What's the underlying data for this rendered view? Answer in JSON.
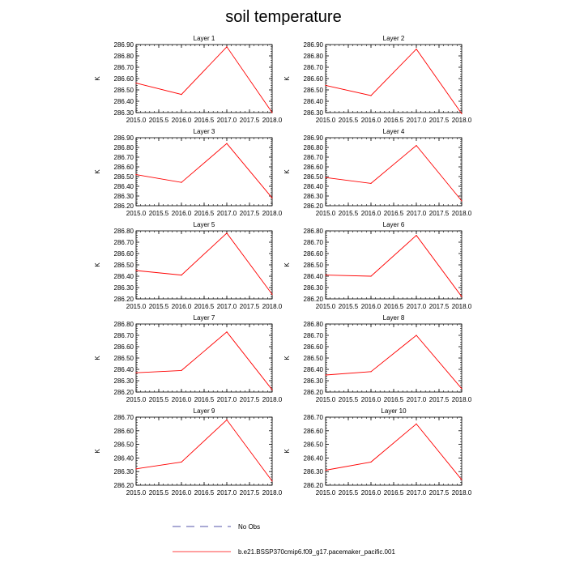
{
  "title": "soil temperature",
  "chart_data": [
    {
      "type": "line",
      "title": "Layer 1",
      "ylabel": "K",
      "xlim": [
        2015.0,
        2018.0
      ],
      "ylim": [
        286.3,
        286.9
      ],
      "yticks": [
        "286.30",
        "286.40",
        "286.50",
        "286.60",
        "286.70",
        "286.80",
        "286.90"
      ],
      "xticks": [
        "2015.0",
        "2015.5",
        "2016.0",
        "2016.5",
        "2017.0",
        "2017.5",
        "2018.0"
      ],
      "series": [
        {
          "name": "b.e21.BSSP370cmip6.f09_g17.pacemaker_pacific.001",
          "x": [
            2015,
            2016,
            2017,
            2018
          ],
          "y": [
            286.56,
            286.46,
            286.88,
            286.3
          ]
        }
      ]
    },
    {
      "type": "line",
      "title": "Layer 2",
      "ylabel": "K",
      "xlim": [
        2015.0,
        2018.0
      ],
      "ylim": [
        286.3,
        286.9
      ],
      "yticks": [
        "286.30",
        "286.40",
        "286.50",
        "286.60",
        "286.70",
        "286.80",
        "286.90"
      ],
      "xticks": [
        "2015.0",
        "2015.5",
        "2016.0",
        "2016.5",
        "2017.0",
        "2017.5",
        "2018.0"
      ],
      "series": [
        {
          "name": "b.e21.BSSP370cmip6.f09_g17.pacemaker_pacific.001",
          "x": [
            2015,
            2016,
            2017,
            2018
          ],
          "y": [
            286.54,
            286.45,
            286.86,
            286.29
          ]
        }
      ]
    },
    {
      "type": "line",
      "title": "Layer 3",
      "ylabel": "K",
      "xlim": [
        2015.0,
        2018.0
      ],
      "ylim": [
        286.2,
        286.9
      ],
      "yticks": [
        "286.20",
        "286.30",
        "286.40",
        "286.50",
        "286.60",
        "286.70",
        "286.80",
        "286.90"
      ],
      "xticks": [
        "2015.0",
        "2015.5",
        "2016.0",
        "2016.5",
        "2017.0",
        "2017.5",
        "2018.0"
      ],
      "series": [
        {
          "name": "b.e21.BSSP370cmip6.f09_g17.pacemaker_pacific.001",
          "x": [
            2015,
            2016,
            2017,
            2018
          ],
          "y": [
            286.52,
            286.44,
            286.84,
            286.28
          ]
        }
      ]
    },
    {
      "type": "line",
      "title": "Layer 4",
      "ylabel": "K",
      "xlim": [
        2015.0,
        2018.0
      ],
      "ylim": [
        286.2,
        286.9
      ],
      "yticks": [
        "286.20",
        "286.30",
        "286.40",
        "286.50",
        "286.60",
        "286.70",
        "286.80",
        "286.90"
      ],
      "xticks": [
        "2015.0",
        "2015.5",
        "2016.0",
        "2016.5",
        "2017.0",
        "2017.5",
        "2018.0"
      ],
      "series": [
        {
          "name": "b.e21.BSSP370cmip6.f09_g17.pacemaker_pacific.001",
          "x": [
            2015,
            2016,
            2017,
            2018
          ],
          "y": [
            286.49,
            286.43,
            286.82,
            286.25
          ]
        }
      ]
    },
    {
      "type": "line",
      "title": "Layer 5",
      "ylabel": "K",
      "xlim": [
        2015.0,
        2018.0
      ],
      "ylim": [
        286.2,
        286.8
      ],
      "yticks": [
        "286.20",
        "286.30",
        "286.40",
        "286.50",
        "286.60",
        "286.70",
        "286.80"
      ],
      "xticks": [
        "2015.0",
        "2015.5",
        "2016.0",
        "2016.5",
        "2017.0",
        "2017.5",
        "2018.0"
      ],
      "series": [
        {
          "name": "b.e21.BSSP370cmip6.f09_g17.pacemaker_pacific.001",
          "x": [
            2015,
            2016,
            2017,
            2018
          ],
          "y": [
            286.45,
            286.41,
            286.78,
            286.24
          ]
        }
      ]
    },
    {
      "type": "line",
      "title": "Layer 6",
      "ylabel": "K",
      "xlim": [
        2015.0,
        2018.0
      ],
      "ylim": [
        286.2,
        286.8
      ],
      "yticks": [
        "286.20",
        "286.30",
        "286.40",
        "286.50",
        "286.60",
        "286.70",
        "286.80"
      ],
      "xticks": [
        "2015.0",
        "2015.5",
        "2016.0",
        "2016.5",
        "2017.0",
        "2017.5",
        "2018.0"
      ],
      "series": [
        {
          "name": "b.e21.BSSP370cmip6.f09_g17.pacemaker_pacific.001",
          "x": [
            2015,
            2016,
            2017,
            2018
          ],
          "y": [
            286.41,
            286.4,
            286.76,
            286.22
          ]
        }
      ]
    },
    {
      "type": "line",
      "title": "Layer 7",
      "ylabel": "K",
      "xlim": [
        2015.0,
        2018.0
      ],
      "ylim": [
        286.2,
        286.8
      ],
      "yticks": [
        "286.20",
        "286.30",
        "286.40",
        "286.50",
        "286.60",
        "286.70",
        "286.80"
      ],
      "xticks": [
        "2015.0",
        "2015.5",
        "2016.0",
        "2016.5",
        "2017.0",
        "2017.5",
        "2018.0"
      ],
      "series": [
        {
          "name": "b.e21.BSSP370cmip6.f09_g17.pacemaker_pacific.001",
          "x": [
            2015,
            2016,
            2017,
            2018
          ],
          "y": [
            286.37,
            286.39,
            286.73,
            286.22
          ]
        }
      ]
    },
    {
      "type": "line",
      "title": "Layer 8",
      "ylabel": "K",
      "xlim": [
        2015.0,
        2018.0
      ],
      "ylim": [
        286.2,
        286.8
      ],
      "yticks": [
        "286.20",
        "286.30",
        "286.40",
        "286.50",
        "286.60",
        "286.70",
        "286.80"
      ],
      "xticks": [
        "2015.0",
        "2015.5",
        "2016.0",
        "2016.5",
        "2017.0",
        "2017.5",
        "2018.0"
      ],
      "series": [
        {
          "name": "b.e21.BSSP370cmip6.f09_g17.pacemaker_pacific.001",
          "x": [
            2015,
            2016,
            2017,
            2018
          ],
          "y": [
            286.35,
            286.38,
            286.7,
            286.23
          ]
        }
      ]
    },
    {
      "type": "line",
      "title": "Layer 9",
      "ylabel": "K",
      "xlim": [
        2015.0,
        2018.0
      ],
      "ylim": [
        286.2,
        286.7
      ],
      "yticks": [
        "286.20",
        "286.30",
        "286.40",
        "286.50",
        "286.60",
        "286.70"
      ],
      "xticks": [
        "2015.0",
        "2015.5",
        "2016.0",
        "2016.5",
        "2017.0",
        "2017.5",
        "2018.0"
      ],
      "series": [
        {
          "name": "b.e21.BSSP370cmip6.f09_g17.pacemaker_pacific.001",
          "x": [
            2015,
            2016,
            2017,
            2018
          ],
          "y": [
            286.32,
            286.37,
            286.68,
            286.23
          ]
        }
      ]
    },
    {
      "type": "line",
      "title": "Layer 10",
      "ylabel": "K",
      "xlim": [
        2015.0,
        2018.0
      ],
      "ylim": [
        286.2,
        286.7
      ],
      "yticks": [
        "286.20",
        "286.30",
        "286.40",
        "286.50",
        "286.60",
        "286.70"
      ],
      "xticks": [
        "2015.0",
        "2015.5",
        "2016.0",
        "2016.5",
        "2017.0",
        "2017.5",
        "2018.0"
      ],
      "series": [
        {
          "name": "b.e21.BSSP370cmip6.f09_g17.pacemaker_pacific.001",
          "x": [
            2015,
            2016,
            2017,
            2018
          ],
          "y": [
            286.31,
            286.37,
            286.65,
            286.24
          ]
        }
      ]
    }
  ],
  "legend": {
    "items": [
      {
        "label": "No Obs",
        "color": "#1e1e8c",
        "style": "dashed"
      },
      {
        "label": "b.e21.BSSP370cmip6.f09_g17.pacemaker_pacific.001",
        "color": "#ff0000",
        "style": "solid"
      }
    ]
  },
  "colors": {
    "series": "#ff0000",
    "axis": "#000000"
  }
}
